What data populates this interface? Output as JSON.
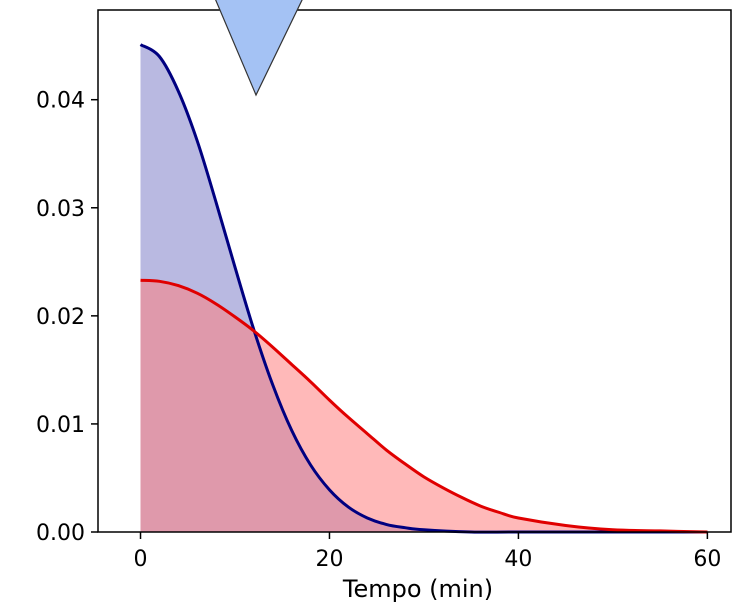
{
  "chart_data": {
    "type": "area",
    "xlabel": "Tempo (min)",
    "ylabel": "",
    "xlim": [
      -4.5,
      62.5
    ],
    "ylim": [
      0,
      0.0483
    ],
    "xticks": [
      "0",
      "20",
      "40",
      "60"
    ],
    "xtick_values": [
      0,
      20,
      40,
      60
    ],
    "yticks": [
      "0.00",
      "0.01",
      "0.02",
      "0.03",
      "0.04"
    ],
    "ytick_values": [
      0,
      0.01,
      0.02,
      0.03,
      0.04
    ],
    "grid": false,
    "series": [
      {
        "color": "#000080",
        "fill": "#8080c8",
        "x": [
          0,
          2,
          4,
          6,
          8,
          10,
          12,
          14,
          16,
          18,
          20,
          22,
          24,
          26,
          28,
          30,
          35,
          40,
          50,
          60
        ],
        "values": [
          0.0451,
          0.044,
          0.0408,
          0.0362,
          0.0305,
          0.0245,
          0.0187,
          0.0136,
          0.0094,
          0.0062,
          0.0039,
          0.0023,
          0.0013,
          0.0007,
          0.0004,
          0.0002,
          0.0,
          0.0,
          0.0,
          0.0
        ]
      },
      {
        "color": "#e00000",
        "fill": "#ff8080",
        "x": [
          0,
          2,
          4,
          6,
          8,
          10,
          12,
          14,
          16,
          18,
          20,
          22,
          24,
          26,
          28,
          30,
          32,
          34,
          36,
          38,
          40,
          45,
          50,
          55,
          60
        ],
        "values": [
          0.0233,
          0.0232,
          0.0228,
          0.0221,
          0.0211,
          0.0199,
          0.0186,
          0.0171,
          0.0155,
          0.0139,
          0.0122,
          0.0106,
          0.0091,
          0.0076,
          0.0063,
          0.0051,
          0.0041,
          0.0032,
          0.0024,
          0.0018,
          0.0013,
          0.0006,
          0.0002,
          0.0001,
          0.0
        ]
      }
    ]
  },
  "marker": {
    "color": "#a4c2f4",
    "stroke": "#333333"
  }
}
